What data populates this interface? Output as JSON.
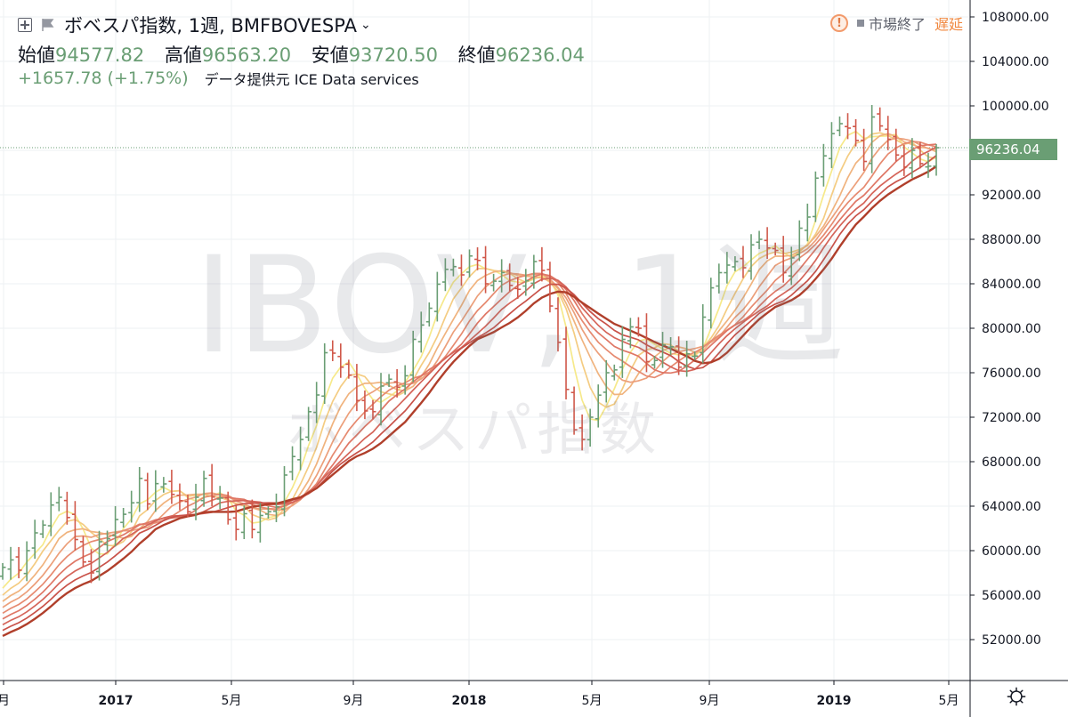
{
  "header": {
    "title": "ボベスパ指数, 1週, BMFBOVESPA",
    "ohlc": [
      {
        "label": "始値",
        "value": "94577.82"
      },
      {
        "label": "高値",
        "value": "96563.20"
      },
      {
        "label": "安値",
        "value": "93720.50"
      },
      {
        "label": "終値",
        "value": "96236.04"
      }
    ],
    "change": "+1657.78 (+1.75%)",
    "data_source": "データ提供元 ICE Data services"
  },
  "status": {
    "warning_glyph": "!",
    "market": "市場終了",
    "delay": "遅延"
  },
  "watermark": {
    "symbol": "IBOV, 1週",
    "name": "ボベスパ指数"
  },
  "colors": {
    "up": "#6a9e74",
    "down": "#d0584a",
    "price_line": "#6a9e74",
    "ribbon": [
      "#f6e98a",
      "#f4cc82",
      "#f0b37e",
      "#ec9f7a",
      "#e68a70",
      "#df7766",
      "#d5655a",
      "#c95249",
      "#b03f2b"
    ]
  },
  "icons": {
    "add": "plus-square-icon",
    "flag": "flag-icon",
    "dropdown": "chevron-down-icon",
    "warning": "warning-icon",
    "settings": "gear-icon"
  },
  "chart_data": {
    "type": "ohlc",
    "interval": "1週",
    "ylim": [
      48000,
      110000
    ],
    "y_ticks": [
      52000,
      56000,
      60000,
      64000,
      68000,
      72000,
      76000,
      80000,
      84000,
      88000,
      92000,
      96000,
      100000,
      104000,
      108000
    ],
    "y_tick_labels": [
      "52000.00",
      "56000.00",
      "60000.00",
      "64000.00",
      "68000.00",
      "72000.00",
      "76000.00",
      "80000.00",
      "84000.00",
      "88000.00",
      "92000.00",
      "96000.00",
      "100000.00",
      "104000.00",
      "108000.00"
    ],
    "x_labels": [
      "月",
      "2017",
      "5月",
      "9月",
      "2018",
      "5月",
      "9月",
      "2019",
      "5月"
    ],
    "last_price": "96236.04",
    "last_bar": {
      "open": 94577.82,
      "high": 96563.2,
      "low": 93720.5,
      "close": 96236.04
    },
    "close_path": [
      [
        0,
        58500
      ],
      [
        3,
        60000
      ],
      [
        5,
        62300
      ],
      [
        7,
        64800
      ],
      [
        9,
        61000
      ],
      [
        11,
        58000
      ],
      [
        12,
        60800
      ],
      [
        14,
        62800
      ],
      [
        16,
        64300
      ],
      [
        17,
        66500
      ],
      [
        18,
        64200
      ],
      [
        20,
        66000
      ],
      [
        22,
        64500
      ],
      [
        23,
        63500
      ],
      [
        24,
        64800
      ],
      [
        25,
        66500
      ],
      [
        28,
        62800
      ],
      [
        31,
        61900
      ],
      [
        33,
        63500
      ],
      [
        35,
        66800
      ],
      [
        37,
        70000
      ],
      [
        39,
        74000
      ],
      [
        40,
        77800
      ],
      [
        42,
        76500
      ],
      [
        44,
        73500
      ],
      [
        46,
        72500
      ],
      [
        47,
        74800
      ],
      [
        49,
        74700
      ],
      [
        51,
        79000
      ],
      [
        53,
        81800
      ],
      [
        55,
        85300
      ],
      [
        57,
        84800
      ],
      [
        58,
        86500
      ],
      [
        60,
        84000
      ],
      [
        62,
        85000
      ],
      [
        64,
        83500
      ],
      [
        66,
        86000
      ],
      [
        67,
        85200
      ],
      [
        68,
        82000
      ],
      [
        70,
        74500
      ],
      [
        72,
        70000
      ],
      [
        73,
        72000
      ],
      [
        75,
        76000
      ],
      [
        77,
        79000
      ],
      [
        79,
        80000
      ],
      [
        80,
        77000
      ],
      [
        82,
        78500
      ],
      [
        84,
        76500
      ],
      [
        86,
        77500
      ],
      [
        87,
        81000
      ],
      [
        89,
        85000
      ],
      [
        91,
        86000
      ],
      [
        93,
        87500
      ],
      [
        94,
        88000
      ],
      [
        96,
        87000
      ],
      [
        97,
        85000
      ],
      [
        99,
        89000
      ],
      [
        100,
        90000
      ],
      [
        101,
        93500
      ],
      [
        103,
        97500
      ],
      [
        105,
        98000
      ],
      [
        107,
        95000
      ],
      [
        108,
        99000
      ],
      [
        110,
        97000
      ],
      [
        112,
        94500
      ],
      [
        113,
        96000
      ],
      [
        115,
        94577.82
      ],
      [
        116,
        96236.04
      ]
    ],
    "ribbon_periods": [
      4,
      6,
      8,
      10,
      12,
      14,
      16,
      18,
      20
    ]
  }
}
